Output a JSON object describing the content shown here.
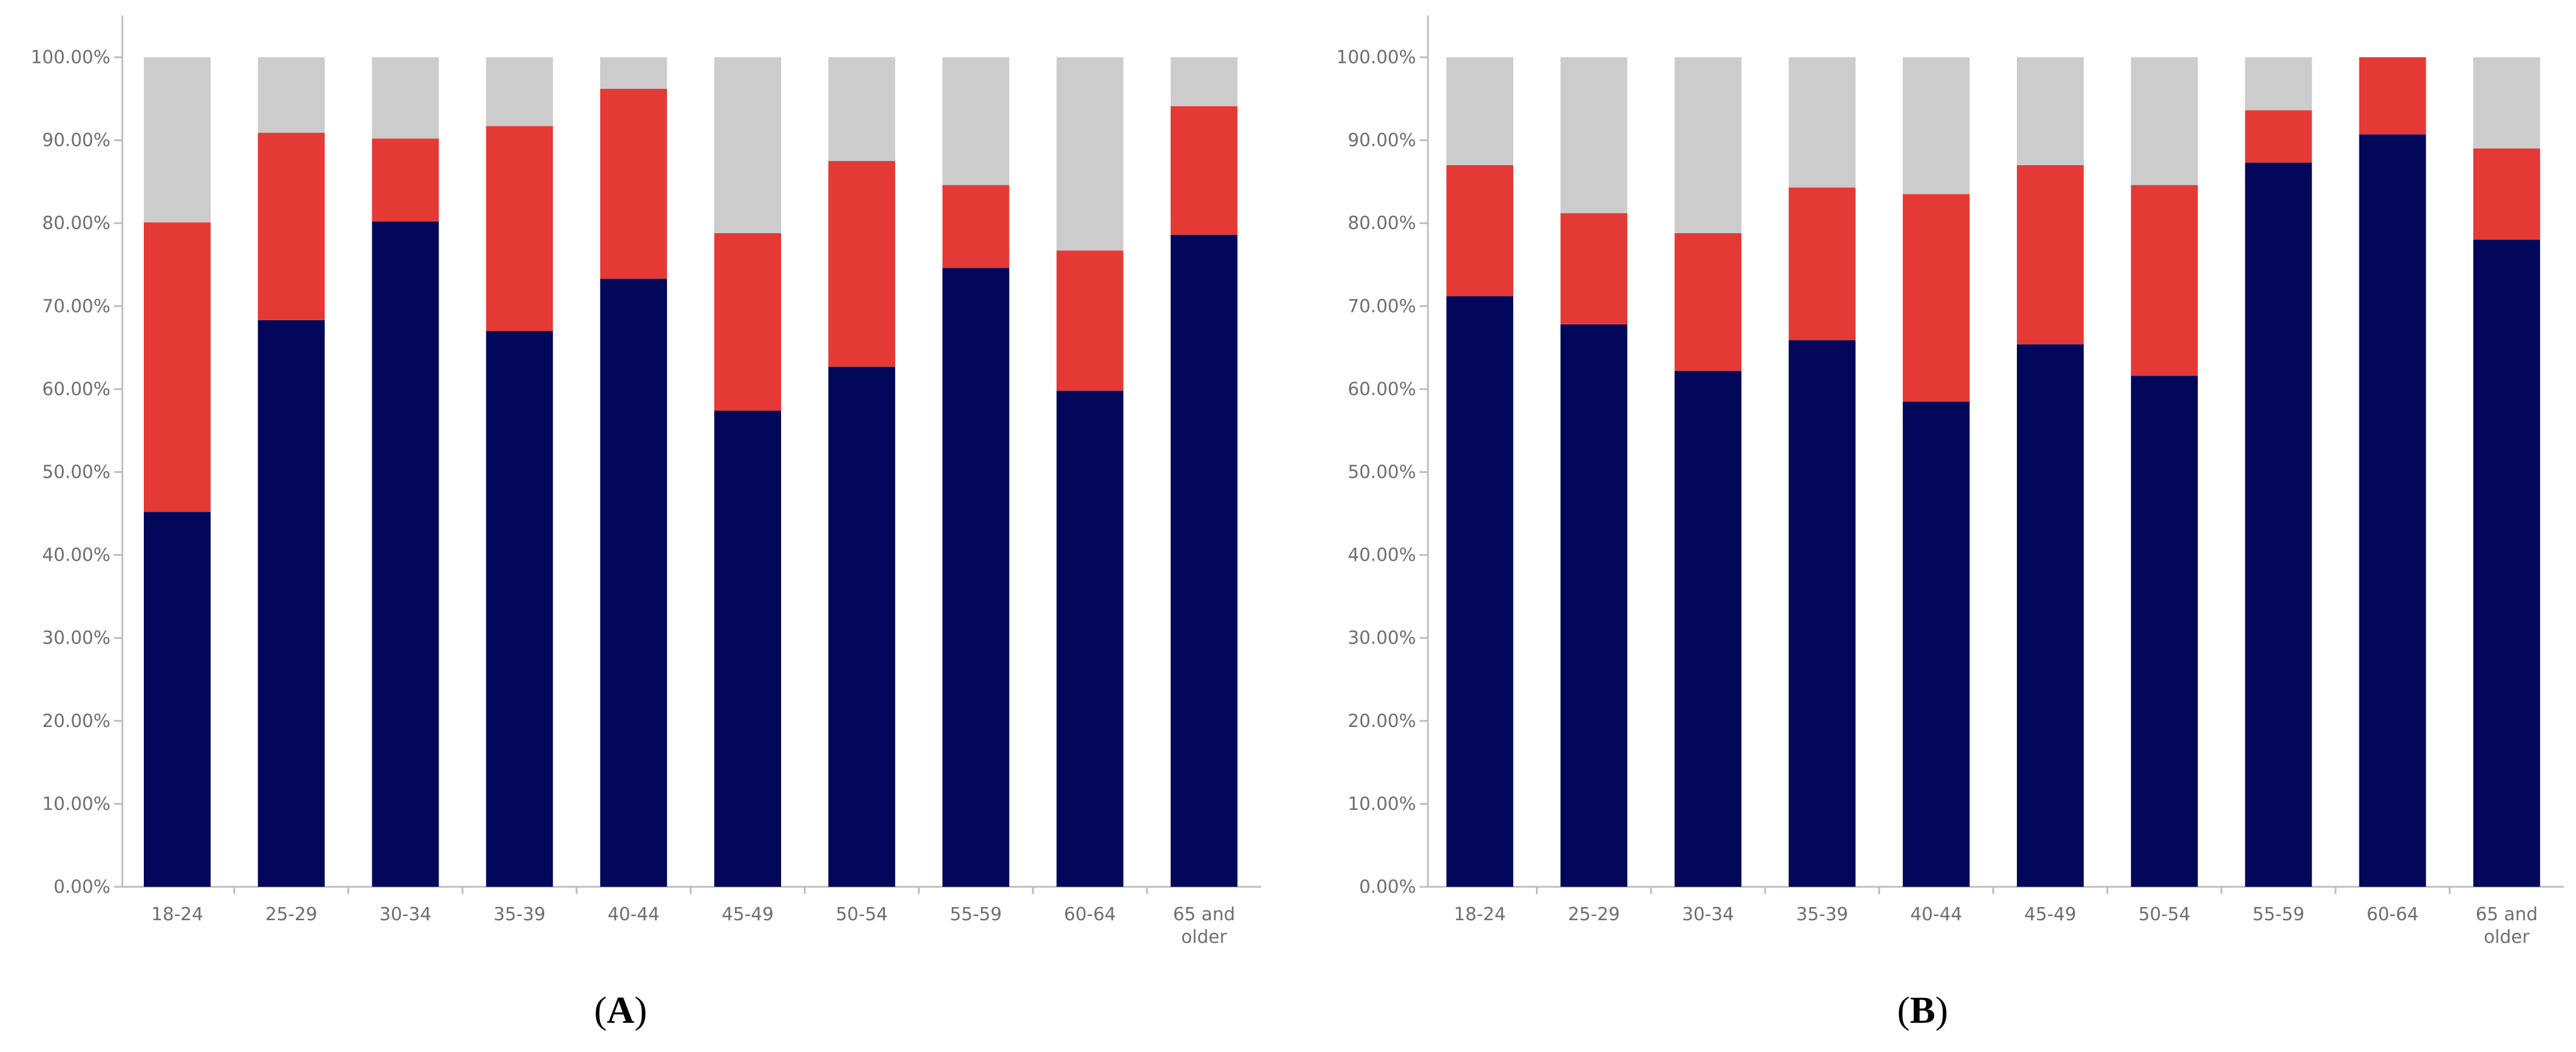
{
  "figure": {
    "panel_labels": [
      "A",
      "B"
    ]
  },
  "colors": {
    "bottom": "#02075a",
    "middle": "#e53935",
    "top": "#cccccc",
    "axis": "#bdbdbd",
    "tick": "#6e6e6e"
  },
  "chart_data": [
    {
      "type": "bar",
      "stacked": true,
      "panel": "A",
      "title": "",
      "xlabel": "",
      "ylabel": "",
      "ylim": [
        0,
        100
      ],
      "yticks": [
        "0.00%",
        "10.00%",
        "20.00%",
        "30.00%",
        "40.00%",
        "50.00%",
        "60.00%",
        "70.00%",
        "80.00%",
        "90.00%",
        "100.00%"
      ],
      "categories": [
        "18-24",
        "25-29",
        "30-34",
        "35-39",
        "40-44",
        "45-49",
        "50-54",
        "55-59",
        "60-64",
        "65 and older"
      ],
      "series": [
        {
          "name": "bottom",
          "values": [
            45.2,
            68.3,
            80.2,
            67.0,
            73.3,
            57.4,
            62.7,
            74.6,
            59.8,
            78.6
          ]
        },
        {
          "name": "middle",
          "values": [
            34.9,
            22.6,
            10.0,
            24.7,
            22.9,
            21.4,
            24.8,
            10.0,
            16.9,
            15.5
          ]
        },
        {
          "name": "top",
          "values": [
            19.9,
            9.1,
            9.8,
            8.3,
            3.8,
            21.2,
            12.5,
            15.4,
            23.3,
            5.9
          ]
        }
      ]
    },
    {
      "type": "bar",
      "stacked": true,
      "panel": "B",
      "title": "",
      "xlabel": "",
      "ylabel": "",
      "ylim": [
        0,
        100
      ],
      "yticks": [
        "0.00%",
        "10.00%",
        "20.00%",
        "30.00%",
        "40.00%",
        "50.00%",
        "60.00%",
        "70.00%",
        "80.00%",
        "90.00%",
        "100.00%"
      ],
      "categories": [
        "18-24",
        "25-29",
        "30-34",
        "35-39",
        "40-44",
        "45-49",
        "50-54",
        "55-59",
        "60-64",
        "65 and older"
      ],
      "series": [
        {
          "name": "bottom",
          "values": [
            71.2,
            67.8,
            62.2,
            65.9,
            58.5,
            65.4,
            61.6,
            87.3,
            90.7,
            78.0
          ]
        },
        {
          "name": "middle",
          "values": [
            15.8,
            13.4,
            16.6,
            18.4,
            25.0,
            21.6,
            23.0,
            6.3,
            9.3,
            11.0
          ]
        },
        {
          "name": "top",
          "values": [
            13.0,
            18.8,
            21.2,
            15.7,
            16.5,
            13.0,
            15.4,
            6.4,
            0.0,
            11.0
          ]
        }
      ]
    }
  ]
}
